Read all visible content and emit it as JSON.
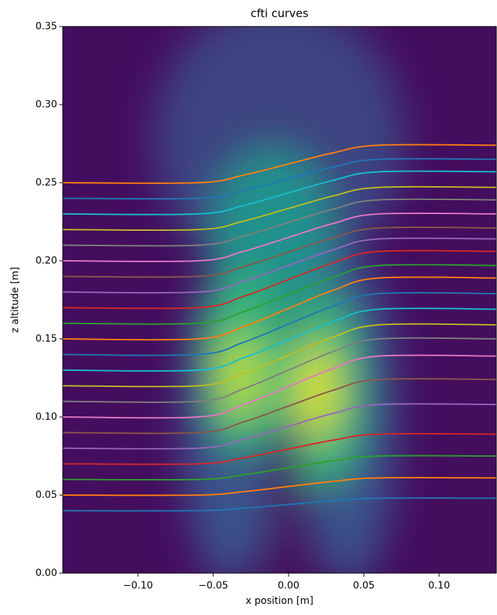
{
  "chart_data": {
    "type": "line",
    "title": "cfti curves",
    "x_label": "x position [m]",
    "y_label": "z altitude [m]",
    "x": [
      -0.15,
      -0.06,
      -0.03,
      0,
      0.03,
      0.06,
      0.138
    ],
    "series": [
      {
        "color": "#1f77b4",
        "values": [
          0.04,
          0.04,
          0.0416,
          0.044,
          0.0464,
          0.048,
          0.048
        ]
      },
      {
        "color": "#ff7f0e",
        "values": [
          0.05,
          0.05,
          0.0522,
          0.0555,
          0.0588,
          0.061,
          0.061
        ]
      },
      {
        "color": "#2ca02c",
        "values": [
          0.06,
          0.06,
          0.063,
          0.0675,
          0.072,
          0.075,
          0.075
        ]
      },
      {
        "color": "#d62728",
        "values": [
          0.07,
          0.07,
          0.0738,
          0.0795,
          0.0852,
          0.089,
          0.089
        ]
      },
      {
        "color": "#9467bd",
        "values": [
          0.08,
          0.08,
          0.0856,
          0.094,
          0.1024,
          0.108,
          0.108
        ]
      },
      {
        "color": "#8c564b",
        "values": [
          0.09,
          0.09,
          0.0968,
          0.107,
          0.1172,
          0.124,
          0.124
        ]
      },
      {
        "color": "#e377c2",
        "values": [
          0.1,
          0.1,
          0.1078,
          0.1195,
          0.1312,
          0.139,
          0.139
        ]
      },
      {
        "color": "#7f7f7f",
        "values": [
          0.11,
          0.11,
          0.118,
          0.13,
          0.142,
          0.15,
          0.15
        ]
      },
      {
        "color": "#bcbd22",
        "values": [
          0.12,
          0.12,
          0.1278,
          0.1395,
          0.1512,
          0.159,
          0.159
        ]
      },
      {
        "color": "#17becf",
        "values": [
          0.13,
          0.13,
          0.1378,
          0.1495,
          0.1612,
          0.169,
          0.169
        ]
      },
      {
        "color": "#1f77b4",
        "values": [
          0.14,
          0.14,
          0.1478,
          0.1595,
          0.1712,
          0.179,
          0.179
        ]
      },
      {
        "color": "#ff7f0e",
        "values": [
          0.15,
          0.15,
          0.1578,
          0.1695,
          0.1812,
          0.189,
          0.189
        ]
      },
      {
        "color": "#2ca02c",
        "values": [
          0.16,
          0.16,
          0.1674,
          0.1785,
          0.1896,
          0.197,
          0.197
        ]
      },
      {
        "color": "#d62728",
        "values": [
          0.17,
          0.17,
          0.1772,
          0.188,
          0.1988,
          0.206,
          0.206
        ]
      },
      {
        "color": "#9467bd",
        "values": [
          0.18,
          0.18,
          0.1868,
          0.197,
          0.2072,
          0.214,
          0.214
        ]
      },
      {
        "color": "#8c564b",
        "values": [
          0.19,
          0.19,
          0.1962,
          0.2055,
          0.2148,
          0.221,
          0.221
        ]
      },
      {
        "color": "#e377c2",
        "values": [
          0.2,
          0.2,
          0.206,
          0.215,
          0.224,
          0.23,
          0.23
        ]
      },
      {
        "color": "#7f7f7f",
        "values": [
          0.21,
          0.21,
          0.2158,
          0.2245,
          0.2332,
          0.239,
          0.239
        ]
      },
      {
        "color": "#bcbd22",
        "values": [
          0.22,
          0.22,
          0.2254,
          0.2335,
          0.2416,
          0.247,
          0.247
        ]
      },
      {
        "color": "#17becf",
        "values": [
          0.23,
          0.23,
          0.2354,
          0.2435,
          0.2516,
          0.257,
          0.257
        ]
      },
      {
        "color": "#1f77b4",
        "values": [
          0.24,
          0.24,
          0.245,
          0.2525,
          0.26,
          0.265,
          0.265
        ]
      },
      {
        "color": "#ff7f0e",
        "values": [
          0.25,
          0.25,
          0.2548,
          0.262,
          0.2692,
          0.274,
          0.274
        ]
      }
    ],
    "xlim": [
      -0.15,
      0.138
    ],
    "ylim": [
      0,
      0.35
    ],
    "xticks": [
      {
        "value": -0.1,
        "label": "−0.10"
      },
      {
        "value": -0.05,
        "label": "−0.05"
      },
      {
        "value": 0,
        "label": "0.00"
      },
      {
        "value": 0.05,
        "label": "0.05"
      },
      {
        "value": 0.1,
        "label": "0.10"
      }
    ],
    "yticks": [
      {
        "value": 0,
        "label": "0.00"
      },
      {
        "value": 0.05,
        "label": "0.05"
      },
      {
        "value": 0.1,
        "label": "0.10"
      },
      {
        "value": 0.15,
        "label": "0.15"
      },
      {
        "value": 0.2,
        "label": "0.20"
      },
      {
        "value": 0.25,
        "label": "0.25"
      },
      {
        "value": 0.3,
        "label": "0.30"
      },
      {
        "value": 0.35,
        "label": "0.35"
      }
    ]
  }
}
